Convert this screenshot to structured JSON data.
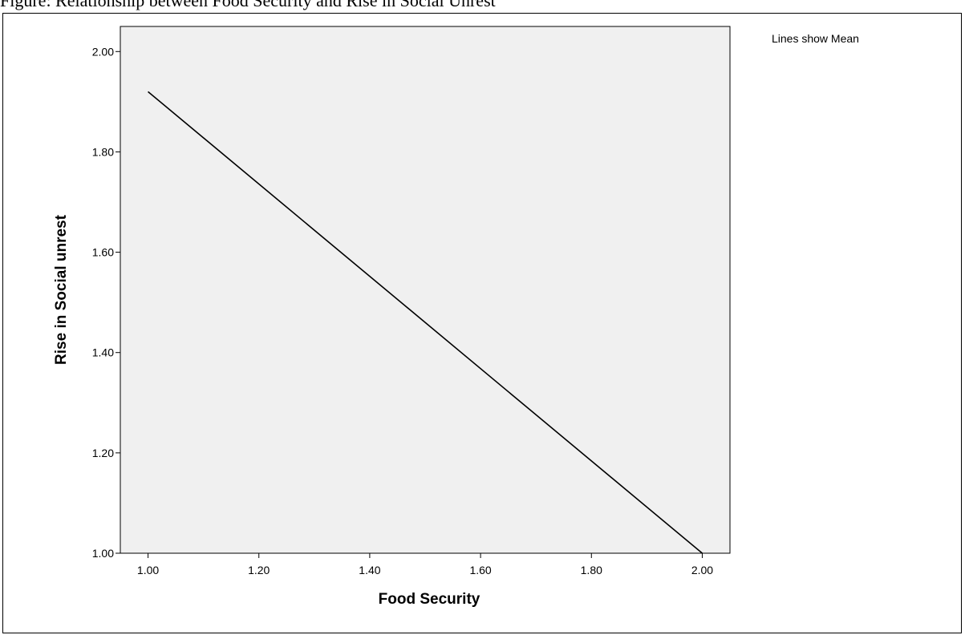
{
  "caption": "Figure: Relationship between Food Security and Rise in Social Unrest",
  "chart_data": {
    "type": "line",
    "xlabel": "Food Security",
    "ylabel": "Rise in Social unrest",
    "annotation": "Lines show Mean",
    "xlim": [
      0.95,
      2.05
    ],
    "ylim": [
      1.0,
      2.05
    ],
    "x_ticks": [
      "1.00",
      "1.20",
      "1.40",
      "1.60",
      "1.80",
      "2.00"
    ],
    "y_ticks": [
      "1.00",
      "1.20",
      "1.40",
      "1.60",
      "1.80",
      "2.00"
    ],
    "grid": false,
    "plot_background": "#f0f0f0",
    "line_color": "#000000",
    "series": [
      {
        "x": [
          1.0,
          2.0
        ],
        "y": [
          1.92,
          1.0
        ]
      }
    ]
  }
}
